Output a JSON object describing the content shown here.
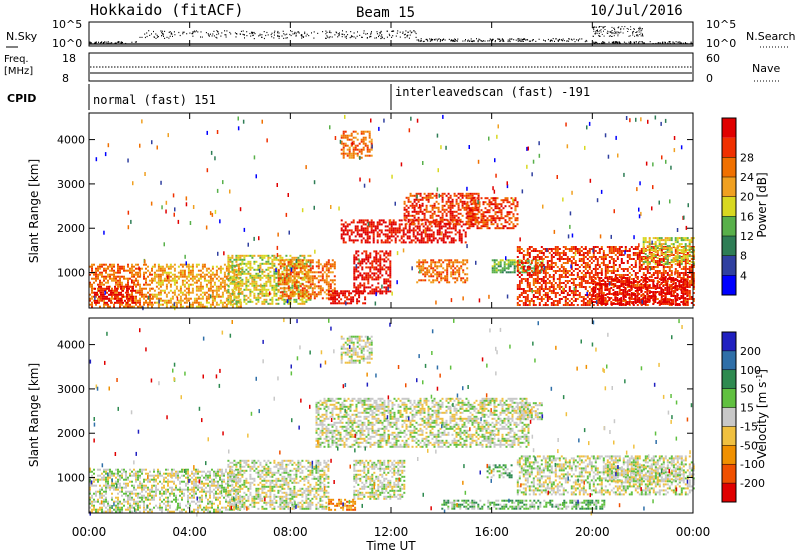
{
  "header": {
    "title": "Hokkaido (fitACF)",
    "beam": "Beam 15",
    "date": "10/Jul/2016"
  },
  "noise_panel": {
    "left_label": "N.Sky",
    "right_label": "N.Search",
    "left_ticks": [
      "10^5",
      "10^0"
    ],
    "right_ticks": [
      "10^5",
      "10^0"
    ]
  },
  "freq_panel": {
    "left_label_line1": "Freq.",
    "left_label_line2": "[MHz]",
    "left_ticks": [
      "18",
      "8"
    ],
    "right_ticks": [
      "60",
      "0"
    ],
    "right_label": "Nave"
  },
  "cpid_panel": {
    "label": "CPID",
    "modes": [
      {
        "start_hour": 0.0,
        "text": "normal (fast) 151"
      },
      {
        "start_hour": 12.0,
        "text": "interleavedscan (fast) -191"
      }
    ]
  },
  "chart_data": [
    {
      "type": "heatmap",
      "name": "power",
      "ylabel": "Slant Range [km]",
      "xlabel": "",
      "xlim_hours": [
        0,
        24
      ],
      "ylim_km": [
        200,
        4600
      ],
      "y_ticks": [
        "1000",
        "2000",
        "3000",
        "4000"
      ],
      "y_tick_values": [
        1000,
        2000,
        3000,
        4000
      ],
      "colorbar": {
        "label": "Power [dB]",
        "tick_labels": [
          "4",
          "8",
          "12",
          "16",
          "20",
          "24",
          "28"
        ],
        "colors": [
          "#0000ff",
          "#3040a0",
          "#2e7d55",
          "#58b04a",
          "#d8d820",
          "#f0a020",
          "#f07000",
          "#f03000",
          "#e00000"
        ]
      },
      "regions": [
        {
          "t0": 0.0,
          "t1": 2.5,
          "r0": 250,
          "r1": 1200,
          "level": 6
        },
        {
          "t0": 0.2,
          "t1": 1.8,
          "r0": 300,
          "r1": 700,
          "level": 8
        },
        {
          "t0": 2.5,
          "t1": 6.0,
          "r0": 250,
          "r1": 1200,
          "level": 5
        },
        {
          "t0": 5.5,
          "t1": 8.8,
          "r0": 300,
          "r1": 1400,
          "level": 4
        },
        {
          "t0": 7.5,
          "t1": 9.8,
          "r0": 400,
          "r1": 1300,
          "level": 6
        },
        {
          "t0": 9.5,
          "t1": 11.0,
          "r0": 300,
          "r1": 600,
          "level": 8
        },
        {
          "t0": 10.5,
          "t1": 12.0,
          "r0": 550,
          "r1": 1500,
          "level": 8
        },
        {
          "t0": 10.0,
          "t1": 15.0,
          "r0": 1700,
          "r1": 2200,
          "level": 8
        },
        {
          "t0": 12.5,
          "t1": 15.5,
          "r0": 2100,
          "r1": 2800,
          "level": 7
        },
        {
          "t0": 15.0,
          "t1": 17.0,
          "r0": 2000,
          "r1": 2700,
          "level": 7
        },
        {
          "t0": 10.0,
          "t1": 11.2,
          "r0": 3600,
          "r1": 4200,
          "level": 6
        },
        {
          "t0": 13.0,
          "t1": 15.0,
          "r0": 800,
          "r1": 1300,
          "level": 6
        },
        {
          "t0": 16.0,
          "t1": 18.0,
          "r0": 1000,
          "r1": 1300,
          "level": 3
        },
        {
          "t0": 17.0,
          "t1": 24.0,
          "r0": 250,
          "r1": 1600,
          "level": 7
        },
        {
          "t0": 20.0,
          "t1": 23.8,
          "r0": 300,
          "r1": 900,
          "level": 8
        },
        {
          "t0": 22.0,
          "t1": 24.0,
          "r0": 1200,
          "r1": 1800,
          "level": 4
        }
      ]
    },
    {
      "type": "heatmap",
      "name": "velocity",
      "ylabel": "Slant Range [km]",
      "xlabel": "Time UT",
      "xlim_hours": [
        0,
        24
      ],
      "ylim_km": [
        200,
        4600
      ],
      "x_ticks": [
        "00:00",
        "04:00",
        "08:00",
        "12:00",
        "16:00",
        "20:00",
        "00:00"
      ],
      "x_tick_hours": [
        0,
        4,
        8,
        12,
        16,
        20,
        24
      ],
      "y_ticks": [
        "1000",
        "2000",
        "3000",
        "4000"
      ],
      "y_tick_values": [
        1000,
        2000,
        3000,
        4000
      ],
      "colorbar": {
        "label": "Velocity [m s",
        "label_sup": "-1",
        "label_end": "]",
        "tick_labels": [
          "200",
          "100",
          "50",
          "15",
          "-15",
          "-50",
          "-100",
          "-200"
        ],
        "colors": [
          "#2020c0",
          "#2f6fa8",
          "#2e8a50",
          "#60c040",
          "#c8c8c8",
          "#f0c040",
          "#f09000",
          "#f05000",
          "#e00000"
        ]
      },
      "regions": [
        {
          "t0": 0.0,
          "t1": 6.0,
          "r0": 250,
          "r1": 1200,
          "level": 4
        },
        {
          "t0": 5.5,
          "t1": 9.5,
          "r0": 300,
          "r1": 1400,
          "level": 4
        },
        {
          "t0": 9.0,
          "t1": 17.5,
          "r0": 1700,
          "r1": 2800,
          "level": 4
        },
        {
          "t0": 10.0,
          "t1": 11.2,
          "r0": 3600,
          "r1": 4200,
          "level": 4
        },
        {
          "t0": 10.5,
          "t1": 12.5,
          "r0": 500,
          "r1": 1400,
          "level": 4
        },
        {
          "t0": 9.5,
          "t1": 10.6,
          "r0": 280,
          "r1": 520,
          "level": 6
        },
        {
          "t0": 15.8,
          "t1": 16.8,
          "r0": 1000,
          "r1": 1300,
          "level": 3
        },
        {
          "t0": 14.0,
          "t1": 20.5,
          "r0": 300,
          "r1": 500,
          "level": 3
        },
        {
          "t0": 17.0,
          "t1": 24.0,
          "r0": 600,
          "r1": 1500,
          "level": 4
        },
        {
          "t0": 20.5,
          "t1": 23.5,
          "r0": 900,
          "r1": 1300,
          "level": 4
        },
        {
          "t0": 17.0,
          "t1": 18.0,
          "r0": 2300,
          "r1": 2700,
          "level": 4
        }
      ]
    }
  ]
}
